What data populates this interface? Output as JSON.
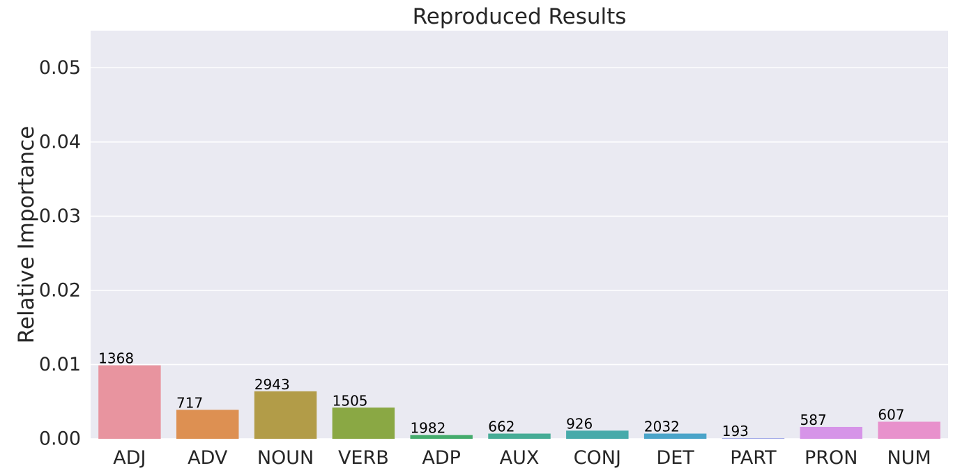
{
  "chart_data": {
    "type": "bar",
    "title": "Reproduced Results",
    "xlabel": "",
    "ylabel": "Relative Importance",
    "categories": [
      "ADJ",
      "ADV",
      "NOUN",
      "VERB",
      "ADP",
      "AUX",
      "CONJ",
      "DET",
      "PART",
      "PRON",
      "NUM"
    ],
    "values": [
      0.0099,
      0.0039,
      0.0064,
      0.0042,
      0.0005,
      0.0007,
      0.0011,
      0.0007,
      0.0001,
      0.0016,
      0.0023
    ],
    "data_labels": [
      "1368",
      "717",
      "2943",
      "1505",
      "1982",
      "662",
      "926",
      "2032",
      "193",
      "587",
      "607"
    ],
    "colors": [
      "#e8949f",
      "#dd9052",
      "#b29c48",
      "#8aa844",
      "#44ab6c",
      "#46ac96",
      "#47aaaa",
      "#4aa4c9",
      "#a4aae8",
      "#d694e8",
      "#e891cc"
    ],
    "ylim": [
      0,
      0.055
    ],
    "yticks": [
      0.0,
      0.01,
      0.02,
      0.03,
      0.04,
      0.05
    ],
    "ytick_labels": [
      "0.00",
      "0.01",
      "0.02",
      "0.03",
      "0.04",
      "0.05"
    ],
    "grid": true,
    "background": "#eaeaf2"
  }
}
